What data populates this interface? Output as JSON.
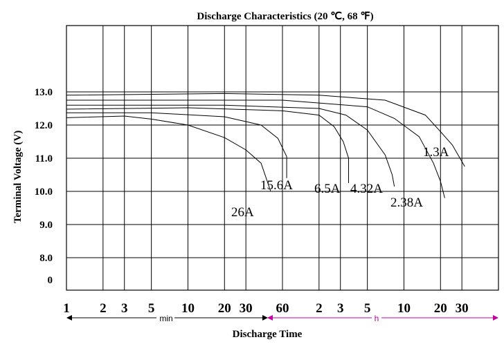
{
  "chart_data": {
    "type": "line",
    "title": "Discharge Characteristics (20 ℃, 68 ℉)",
    "xlabel": "Discharge Time",
    "ylabel": "Terminal Voltage (V)",
    "x_scale": "log",
    "x_ticks": [
      {
        "label": "1",
        "minutes": 1
      },
      {
        "label": "2",
        "minutes": 2
      },
      {
        "label": "3",
        "minutes": 3
      },
      {
        "label": "5",
        "minutes": 5
      },
      {
        "label": "10",
        "minutes": 10
      },
      {
        "label": "20",
        "minutes": 20
      },
      {
        "label": "30",
        "minutes": 30
      },
      {
        "label": "60",
        "minutes": 60
      },
      {
        "label": "2",
        "minutes": 120
      },
      {
        "label": "3",
        "minutes": 180
      },
      {
        "label": "5",
        "minutes": 300
      },
      {
        "label": "10",
        "minutes": 600
      },
      {
        "label": "20",
        "minutes": 1200
      },
      {
        "label": "30",
        "minutes": 1800
      }
    ],
    "y_ticks": [
      "13.0",
      "12.0",
      "11.0",
      "10.0",
      "9.0",
      "8.0",
      "0"
    ],
    "units": {
      "min_label": "min",
      "hour_label": "h"
    },
    "grid": true,
    "series": [
      {
        "name": "26A",
        "points": [
          [
            1,
            12.22
          ],
          [
            3,
            12.27
          ],
          [
            5,
            12.18
          ],
          [
            10,
            12.0
          ],
          [
            20,
            11.62
          ],
          [
            30,
            11.25
          ],
          [
            40,
            10.85
          ],
          [
            48,
            10.0
          ]
        ]
      },
      {
        "name": "15.6A",
        "points": [
          [
            1,
            12.37
          ],
          [
            5,
            12.37
          ],
          [
            20,
            12.25
          ],
          [
            40,
            12.0
          ],
          [
            55,
            11.6
          ],
          [
            65,
            11.05
          ],
          [
            65,
            10.4
          ]
        ]
      },
      {
        "name": "6.5A",
        "points": [
          [
            1,
            12.48
          ],
          [
            10,
            12.52
          ],
          [
            60,
            12.43
          ],
          [
            120,
            12.3
          ],
          [
            160,
            11.95
          ],
          [
            190,
            11.5
          ],
          [
            210,
            11.0
          ],
          [
            210,
            10.25
          ]
        ]
      },
      {
        "name": "4.32A",
        "points": [
          [
            1,
            12.6
          ],
          [
            20,
            12.6
          ],
          [
            120,
            12.5
          ],
          [
            200,
            12.3
          ],
          [
            300,
            11.85
          ],
          [
            420,
            11.1
          ],
          [
            480,
            10.5
          ],
          [
            500,
            10.15
          ]
        ]
      },
      {
        "name": "2.38A",
        "points": [
          [
            1,
            12.75
          ],
          [
            60,
            12.75
          ],
          [
            300,
            12.55
          ],
          [
            500,
            12.2
          ],
          [
            800,
            11.65
          ],
          [
            1050,
            10.85
          ],
          [
            1200,
            10.3
          ],
          [
            1300,
            9.8
          ]
        ]
      },
      {
        "name": "1.3A",
        "points": [
          [
            1,
            12.9
          ],
          [
            20,
            12.95
          ],
          [
            120,
            12.9
          ],
          [
            420,
            12.75
          ],
          [
            900,
            12.3
          ],
          [
            1200,
            11.8
          ],
          [
            1500,
            11.4
          ],
          [
            1900,
            10.75
          ]
        ]
      }
    ]
  }
}
